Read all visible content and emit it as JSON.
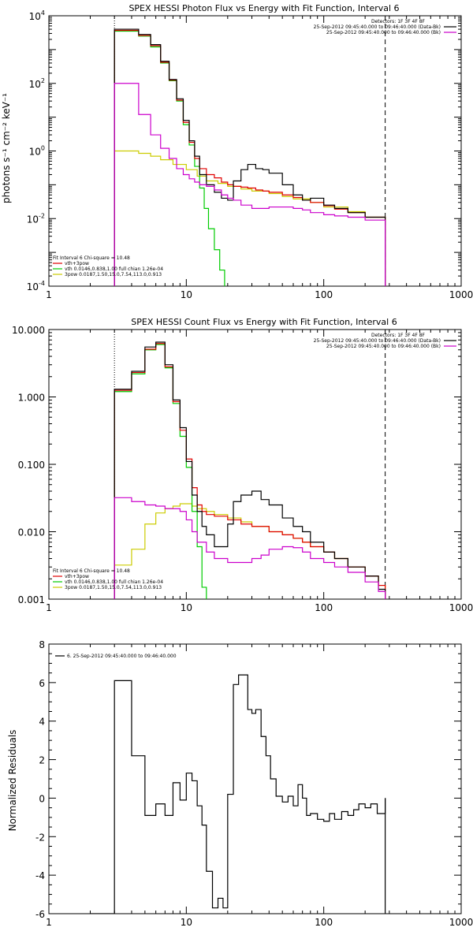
{
  "chart_data": [
    {
      "type": "line",
      "title": "SPEX HESSI Photon Flux vs Energy with Fit Function, Interval 6",
      "ylabel": "photons s⁻¹ cm⁻² keV⁻¹",
      "xlabel": "",
      "xscale": "log",
      "yscale": "log",
      "xlim": [
        1,
        1000
      ],
      "ylim": [
        0.0001,
        10000
      ],
      "grid": false,
      "xticks": [
        {
          "v": 1,
          "label": "1"
        },
        {
          "v": 10,
          "label": "10"
        },
        {
          "v": 100,
          "label": "100"
        },
        {
          "v": 1000,
          "label": "1000"
        }
      ],
      "yticks": [
        {
          "v": 0.0001,
          "base": "10",
          "exp": "-4"
        },
        {
          "v": 0.01,
          "base": "10",
          "exp": "-2"
        },
        {
          "v": 1,
          "base": "10",
          "exp": "0"
        },
        {
          "v": 100,
          "base": "10",
          "exp": "2"
        },
        {
          "v": 10000,
          "base": "10",
          "exp": "4"
        }
      ],
      "vlines": [
        {
          "x": 3,
          "style": "dotted"
        },
        {
          "x": 280,
          "style": "dashed"
        }
      ],
      "legend_topright": {
        "heading": "Detectors: 1F 3F 4F 8F",
        "entries": [
          {
            "text": "25-Sep-2012 09:45:40.000 to 09:46:40.000 (Data-Bk)",
            "color": "#000000"
          },
          {
            "text": "25-Sep-2012 09:45:40.000 to 09:46:40.000 (Bk)",
            "color": "#cc00cc"
          }
        ]
      },
      "legend_bottomleft": {
        "heading": "Fit Interval 6   Chi-square = 10.48",
        "entries": [
          {
            "text": "vth+3pow",
            "color": "#e00000"
          },
          {
            "text": "vth 0.0146,0.838,1.00  full chian 1.26e-04",
            "color": "#00cc00"
          },
          {
            "text": "3pow 0.0187,1.50,15.0,7.54,113.0,0.913",
            "color": "#cccc00"
          }
        ]
      },
      "series": [
        {
          "color": "#cccc00",
          "edges": [
            3,
            4.5,
            5.5,
            6.5,
            8,
            10,
            12,
            14,
            17,
            20,
            25,
            30,
            40,
            50,
            60,
            80,
            100,
            150,
            200,
            280
          ],
          "values": [
            1.0,
            0.85,
            0.7,
            0.55,
            0.4,
            0.28,
            0.18,
            0.13,
            0.11,
            0.09,
            0.075,
            0.065,
            0.055,
            0.045,
            0.038,
            0.03,
            0.022,
            0.016,
            0.011
          ]
        },
        {
          "color": "#00cc00",
          "edges": [
            3,
            4.5,
            5.5,
            6.5,
            7.5,
            8.5,
            9.5,
            10.5,
            11.5,
            12.5,
            13.5,
            14.5,
            16,
            17.5,
            19
          ],
          "values": [
            3500,
            2500,
            1200,
            400,
            120,
            30,
            6,
            1.5,
            0.35,
            0.08,
            0.02,
            0.005,
            0.0012,
            0.0003
          ]
        },
        {
          "color": "#e00000",
          "edges": [
            3,
            4.5,
            5.5,
            6.5,
            7.5,
            8.5,
            9.5,
            10.5,
            11.5,
            12.5,
            14,
            16,
            18,
            20,
            22,
            25,
            28,
            32,
            36,
            40,
            50,
            60,
            70,
            80,
            100,
            120,
            150,
            200,
            280
          ],
          "values": [
            3700,
            2600,
            1300,
            420,
            125,
            32,
            7,
            1.8,
            0.6,
            0.3,
            0.2,
            0.16,
            0.12,
            0.1,
            0.09,
            0.085,
            0.08,
            0.07,
            0.065,
            0.06,
            0.05,
            0.042,
            0.035,
            0.03,
            0.024,
            0.019,
            0.015,
            0.011
          ]
        },
        {
          "color": "#000000",
          "edges": [
            3,
            4.5,
            5.5,
            6.5,
            7.5,
            8.5,
            9.5,
            10.5,
            11.5,
            12.5,
            14,
            16,
            18,
            20,
            22,
            25,
            28,
            32,
            36,
            40,
            50,
            60,
            70,
            80,
            100,
            120,
            150,
            200,
            280
          ],
          "values": [
            4000,
            2800,
            1400,
            450,
            130,
            35,
            8,
            2.0,
            0.7,
            0.2,
            0.1,
            0.06,
            0.04,
            0.035,
            0.13,
            0.28,
            0.4,
            0.3,
            0.28,
            0.22,
            0.1,
            0.05,
            0.035,
            0.04,
            0.025,
            0.02,
            0.015,
            0.011
          ]
        },
        {
          "color": "#cc00cc",
          "edges": [
            3,
            4.5,
            5.5,
            6.5,
            7.5,
            8.5,
            9.5,
            10.5,
            11.5,
            12.5,
            14,
            16,
            18,
            20,
            22,
            25,
            30,
            40,
            50,
            60,
            70,
            80,
            100,
            120,
            150,
            200,
            280
          ],
          "values": [
            100,
            12,
            3,
            1.2,
            0.6,
            0.3,
            0.2,
            0.15,
            0.12,
            0.1,
            0.09,
            0.07,
            0.05,
            0.04,
            0.035,
            0.025,
            0.02,
            0.022,
            0.022,
            0.02,
            0.018,
            0.015,
            0.013,
            0.012,
            0.011,
            0.009
          ]
        }
      ]
    },
    {
      "type": "line",
      "title": "SPEX HESSI Count Flux vs Energy with Fit Function, Interval 6",
      "ylabel": "",
      "xlabel": "",
      "xscale": "log",
      "yscale": "log",
      "xlim": [
        1,
        1000
      ],
      "ylim": [
        0.001,
        10
      ],
      "grid": false,
      "xticks": [
        {
          "v": 1,
          "label": "1"
        },
        {
          "v": 10,
          "label": "10"
        },
        {
          "v": 100,
          "label": "100"
        },
        {
          "v": 1000,
          "label": "1000"
        }
      ],
      "yticks": [
        {
          "v": 0.001,
          "label": "0.001"
        },
        {
          "v": 0.01,
          "label": "0.010"
        },
        {
          "v": 0.1,
          "label": "0.100"
        },
        {
          "v": 1,
          "label": "1.000"
        },
        {
          "v": 10,
          "label": "10.000"
        }
      ],
      "vlines": [
        {
          "x": 3,
          "style": "dotted"
        },
        {
          "x": 280,
          "style": "dashed"
        }
      ],
      "legend_topright": {
        "heading": "Detectors: 1F 3F 4F 8F",
        "entries": [
          {
            "text": "25-Sep-2012 09:45:40.000 to 09:46:40.000 (Data-Bk)",
            "color": "#000000"
          },
          {
            "text": "25-Sep-2012 09:45:40.000 to 09:46:40.000 (Bk)",
            "color": "#cc00cc"
          }
        ]
      },
      "legend_bottomleft": {
        "heading": "Fit Interval 6   Chi-square = 10.48",
        "entries": [
          {
            "text": "vth+3pow",
            "color": "#e00000"
          },
          {
            "text": "vth 0.0146,0.838,1.00  full chian 1.26e-04",
            "color": "#00cc00"
          },
          {
            "text": "3pow 0.0187,1.50,15.0,7.54,113.0,0.913",
            "color": "#cccc00"
          }
        ]
      },
      "series": [
        {
          "color": "#cccc00",
          "edges": [
            3,
            4,
            5,
            6,
            7,
            8,
            9,
            10,
            11,
            12,
            14,
            16,
            20,
            25,
            30,
            40,
            50,
            60,
            70,
            80,
            100,
            120,
            150,
            200,
            250,
            280
          ],
          "values": [
            0.0032,
            0.0055,
            0.013,
            0.019,
            0.022,
            0.024,
            0.026,
            0.026,
            0.024,
            0.022,
            0.02,
            0.018,
            0.016,
            0.014,
            0.012,
            0.01,
            0.009,
            0.008,
            0.007,
            0.006,
            0.005,
            0.004,
            0.003,
            0.0022,
            0.0016
          ]
        },
        {
          "color": "#00cc00",
          "edges": [
            3,
            4,
            5,
            6,
            7,
            8,
            9,
            10,
            11,
            12,
            13,
            14
          ],
          "values": [
            1.2,
            2.2,
            5.0,
            6.0,
            2.7,
            0.8,
            0.26,
            0.09,
            0.02,
            0.006,
            0.0015
          ]
        },
        {
          "color": "#e00000",
          "edges": [
            3,
            4,
            5,
            6,
            7,
            8,
            9,
            10,
            11,
            12,
            13,
            14,
            16,
            20,
            25,
            30,
            40,
            50,
            60,
            70,
            80,
            100,
            120,
            150,
            200,
            250,
            280
          ],
          "values": [
            1.25,
            2.3,
            5.1,
            6.2,
            2.8,
            0.85,
            0.32,
            0.12,
            0.045,
            0.025,
            0.02,
            0.018,
            0.017,
            0.015,
            0.013,
            0.012,
            0.01,
            0.009,
            0.008,
            0.007,
            0.006,
            0.005,
            0.004,
            0.003,
            0.0022,
            0.0016
          ]
        },
        {
          "color": "#000000",
          "edges": [
            3,
            4,
            5,
            6,
            7,
            8,
            9,
            10,
            11,
            12,
            13,
            14,
            16,
            18,
            20,
            22,
            25,
            30,
            35,
            40,
            50,
            60,
            70,
            80,
            100,
            120,
            150,
            200,
            250,
            280
          ],
          "values": [
            1.3,
            2.4,
            5.5,
            6.5,
            3.0,
            0.9,
            0.35,
            0.11,
            0.035,
            0.02,
            0.012,
            0.009,
            0.006,
            0.006,
            0.013,
            0.028,
            0.035,
            0.04,
            0.03,
            0.025,
            0.016,
            0.012,
            0.01,
            0.007,
            0.005,
            0.004,
            0.003,
            0.0022,
            0.0014
          ]
        },
        {
          "color": "#cc00cc",
          "edges": [
            3,
            4,
            5,
            6,
            7,
            8,
            9,
            10,
            11,
            12,
            14,
            16,
            18,
            20,
            25,
            30,
            35,
            40,
            50,
            60,
            70,
            80,
            100,
            120,
            150,
            200,
            250,
            280
          ],
          "values": [
            0.032,
            0.028,
            0.025,
            0.024,
            0.022,
            0.022,
            0.02,
            0.015,
            0.01,
            0.007,
            0.005,
            0.004,
            0.004,
            0.0035,
            0.0035,
            0.004,
            0.0045,
            0.0055,
            0.006,
            0.0058,
            0.005,
            0.004,
            0.0035,
            0.003,
            0.0025,
            0.0018,
            0.0013
          ]
        }
      ]
    },
    {
      "type": "line",
      "title": "",
      "ylabel": "Normalized Residuals",
      "xlabel": "",
      "xscale": "log",
      "yscale": "linear",
      "xlim": [
        1,
        1000
      ],
      "ylim": [
        -6,
        8
      ],
      "grid": false,
      "xticks": [
        {
          "v": 1,
          "label": "1"
        },
        {
          "v": 10,
          "label": "10"
        },
        {
          "v": 100,
          "label": "100"
        },
        {
          "v": 1000,
          "label": "1000"
        }
      ],
      "yticks": [
        {
          "v": -6,
          "label": "-6"
        },
        {
          "v": -4,
          "label": "-4"
        },
        {
          "v": -2,
          "label": "-2"
        },
        {
          "v": 0,
          "label": "0"
        },
        {
          "v": 2,
          "label": "2"
        },
        {
          "v": 4,
          "label": "4"
        },
        {
          "v": 6,
          "label": "6"
        },
        {
          "v": 8,
          "label": "8"
        }
      ],
      "vlines": [],
      "legend_topright": null,
      "legend_bottomleft": null,
      "legend_topleft": {
        "heading": "",
        "entries": [
          {
            "text": "6. 25-Sep-2012 09:45:40.000 to 09:46:40.000",
            "color": "#000000"
          }
        ]
      },
      "baseline": {
        "x": [
          2.0,
          3.0
        ],
        "value": -6
      },
      "series": [
        {
          "color": "#000000",
          "edges": [
            3,
            4,
            5,
            6,
            7,
            8,
            9,
            10,
            11,
            12,
            13,
            14,
            15.5,
            17,
            18.5,
            20,
            22,
            24,
            26,
            28,
            30,
            32,
            35,
            38,
            41,
            45,
            50,
            55,
            60,
            65,
            70,
            75,
            80,
            90,
            100,
            110,
            120,
            135,
            150,
            165,
            180,
            200,
            220,
            245,
            280
          ],
          "values": [
            6.1,
            2.2,
            -0.9,
            -0.3,
            -0.9,
            0.8,
            -0.1,
            1.3,
            0.9,
            -0.4,
            -1.4,
            -3.8,
            -5.7,
            -5.2,
            -5.7,
            0.2,
            5.9,
            6.4,
            6.4,
            4.6,
            4.4,
            4.6,
            3.2,
            2.2,
            1.0,
            0.1,
            -0.2,
            0.1,
            -0.4,
            0.7,
            0.0,
            -0.9,
            -0.8,
            -1.1,
            -1.2,
            -0.8,
            -1.1,
            -0.7,
            -0.9,
            -0.6,
            -0.3,
            -0.5,
            -0.3,
            -0.8,
            0.0
          ]
        }
      ],
      "segments": [
        {
          "x": 280,
          "from": 0.0,
          "to": -6
        }
      ]
    }
  ]
}
